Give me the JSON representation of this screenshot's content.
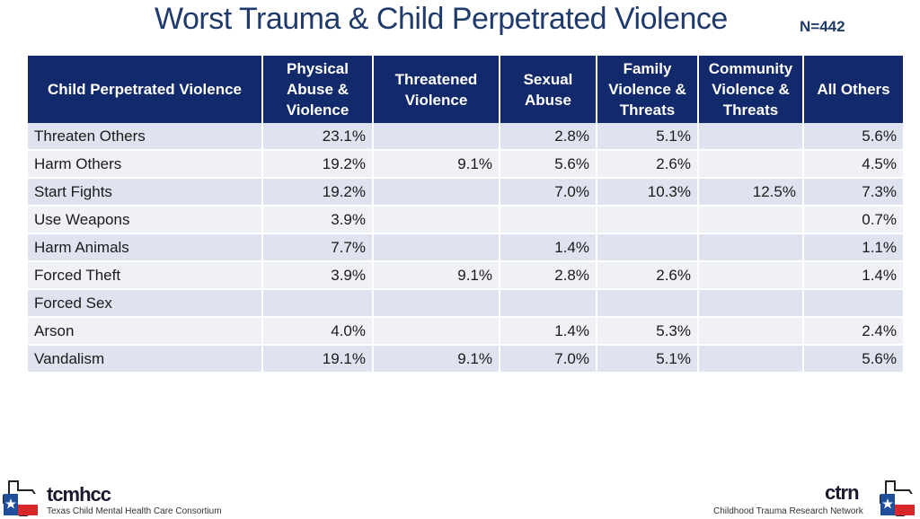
{
  "title": "Worst Trauma & Child Perpetrated Violence",
  "n_label": "N=442",
  "table": {
    "headers": [
      "Child Perpetrated Violence",
      "Physical\nAbuse &\nViolence",
      "Threatened\nViolence",
      "Sexual\nAbuse",
      "Family\nViolence &\nThreats",
      "Community\nViolence &\nThreats",
      "All Others"
    ],
    "rows": [
      [
        "Threaten Others",
        "23.1%",
        "",
        "2.8%",
        "5.1%",
        "",
        "5.6%"
      ],
      [
        "Harm Others",
        "19.2%",
        "9.1%",
        "5.6%",
        "2.6%",
        "",
        "4.5%"
      ],
      [
        "Start Fights",
        "19.2%",
        "",
        "7.0%",
        "10.3%",
        "12.5%",
        "7.3%"
      ],
      [
        "Use Weapons",
        "3.9%",
        "",
        "",
        "",
        "",
        "0.7%"
      ],
      [
        "Harm Animals",
        "7.7%",
        "",
        "1.4%",
        "",
        "",
        "1.1%"
      ],
      [
        "Forced Theft",
        "3.9%",
        "9.1%",
        "2.8%",
        "2.6%",
        "",
        "1.4%"
      ],
      [
        "Forced Sex",
        "",
        "",
        "",
        "",
        "",
        ""
      ],
      [
        "Arson",
        "4.0%",
        "",
        "1.4%",
        "5.3%",
        "",
        "2.4%"
      ],
      [
        "Vandalism",
        "19.1%",
        "9.1%",
        "7.0%",
        "5.1%",
        "",
        "5.6%"
      ]
    ]
  },
  "footer": {
    "left_logo_word": "tcmhcc",
    "left_logo_sub": "Texas Child Mental Health Care Consortium",
    "right_logo_word": "ctrn",
    "right_logo_sub": "Childhood Trauma Research Network"
  },
  "colors": {
    "header_bg": "#12296b",
    "title": "#1f3a6b",
    "row_odd": "#dfe3ef",
    "row_even": "#eff1f7",
    "texas_red": "#d62828",
    "texas_blue": "#1f4e9a"
  }
}
